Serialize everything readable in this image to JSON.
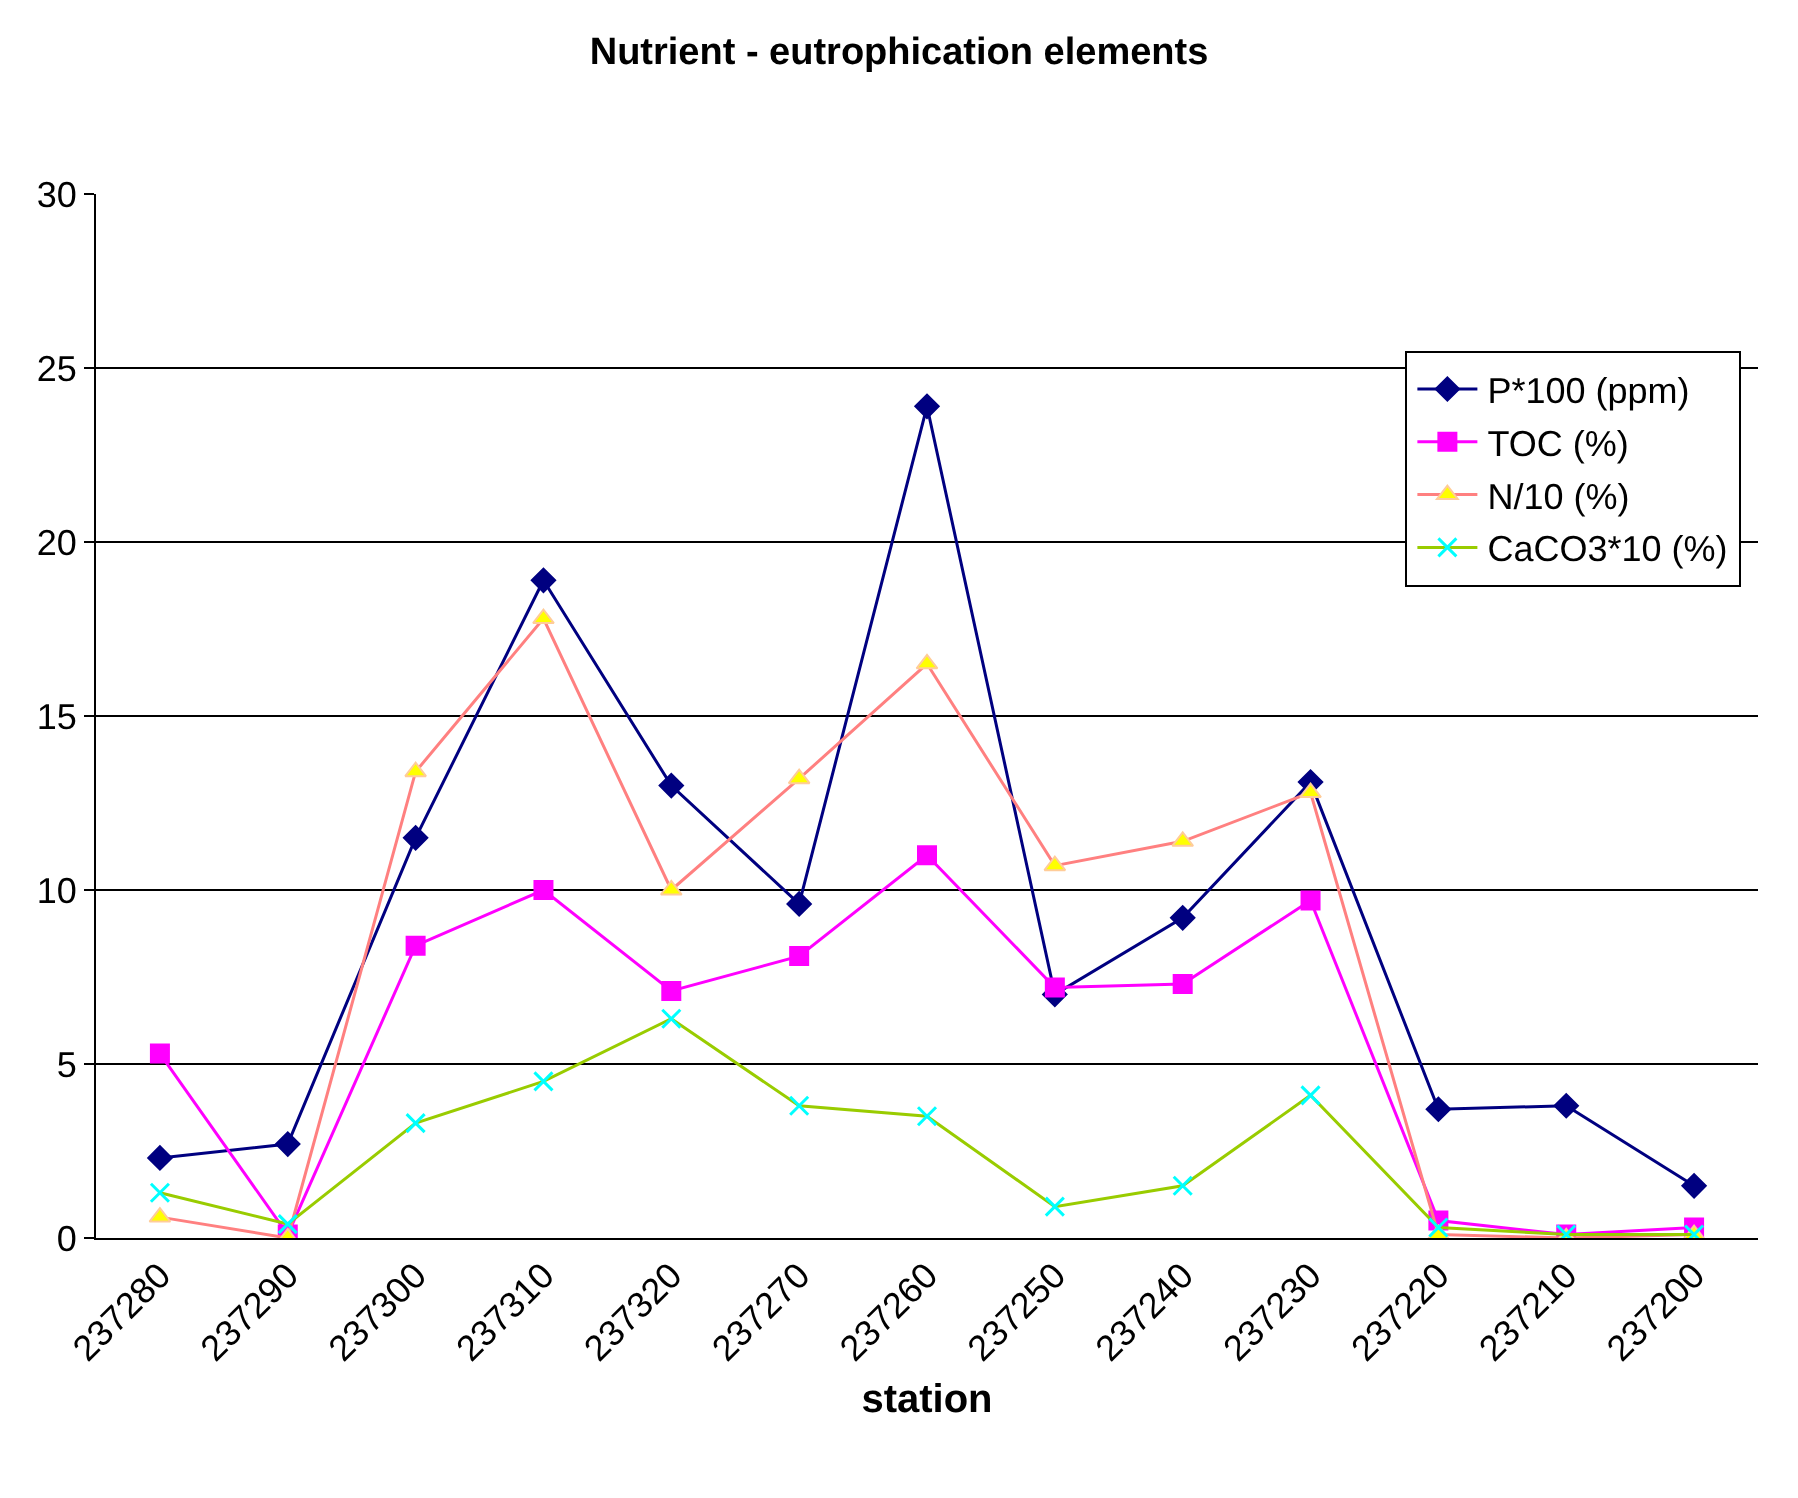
{
  "chart_data": {
    "type": "line",
    "title": "Nutrient - eutrophication elements",
    "xlabel": "station",
    "categories": [
      "237280",
      "237290",
      "237300",
      "237310",
      "237320",
      "237270",
      "237260",
      "237250",
      "237240",
      "237230",
      "237220",
      "237210",
      "237200"
    ],
    "series": [
      {
        "name": "P*100 (ppm)",
        "color": "#000080",
        "marker": "diamond",
        "values": [
          2.3,
          2.7,
          11.5,
          18.9,
          13.0,
          9.6,
          23.9,
          7.0,
          9.2,
          13.1,
          3.7,
          3.8,
          1.5
        ]
      },
      {
        "name": "TOC (%)",
        "color": "#ff00ff",
        "marker": "square",
        "values": [
          5.3,
          0.1,
          8.4,
          10.0,
          7.1,
          8.1,
          11.0,
          7.2,
          7.3,
          9.7,
          0.5,
          0.1,
          0.3
        ]
      },
      {
        "name": "N/10 (%)",
        "color": "#ff8080",
        "marker": "triangle",
        "values": [
          0.6,
          0.0,
          13.4,
          17.8,
          10.0,
          13.2,
          16.5,
          10.7,
          11.4,
          12.8,
          0.1,
          0.0,
          0.1
        ]
      },
      {
        "name": "CaCO3*10 (%)",
        "color": "#99cc00",
        "marker": "cross",
        "values": [
          1.3,
          0.4,
          3.3,
          4.5,
          6.3,
          3.8,
          3.5,
          0.9,
          1.5,
          4.1,
          0.3,
          0.1,
          0.1
        ]
      }
    ],
    "ylim": [
      0,
      30
    ],
    "yticks": [
      0,
      5,
      10,
      15,
      20,
      25,
      30
    ],
    "grid": "y",
    "legend": "top right"
  }
}
